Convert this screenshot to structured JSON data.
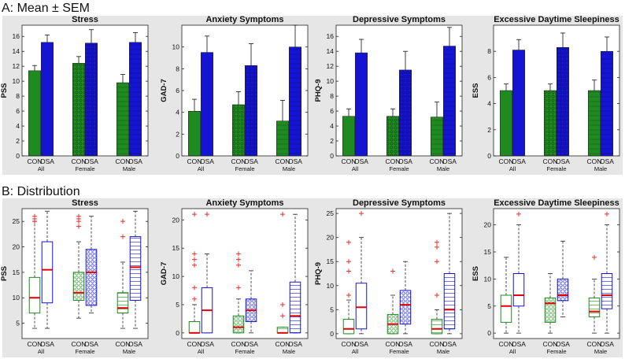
{
  "sections": [
    {
      "heading": "A: Mean ± SEM"
    },
    {
      "heading": "B: Distribution"
    }
  ],
  "colors": {
    "con": "#1f8a1f",
    "osa": "#1414d2",
    "median": "#e00000",
    "outlier": "#e83030",
    "panel_bg": "#e6e6e6"
  },
  "groups": [
    {
      "name": "All",
      "labels": [
        "CON",
        "OSA"
      ]
    },
    {
      "name": "Female",
      "labels": [
        "CON",
        "OSA"
      ]
    },
    {
      "name": "Male",
      "labels": [
        "CON",
        "OSA"
      ]
    }
  ],
  "chart_data": [
    {
      "type": "bar",
      "title": "Stress",
      "ylabel": "PSS",
      "ylim": [
        0,
        17.5
      ],
      "yticks": [
        0,
        2,
        4,
        6,
        8,
        10,
        12,
        14,
        16
      ],
      "categories": [
        "CON All",
        "OSA All",
        "CON Female",
        "OSA Female",
        "CON Male",
        "OSA Male"
      ],
      "series": [
        {
          "name": "Mean",
          "values": [
            11.4,
            15.2,
            12.4,
            15.1,
            9.8,
            15.2
          ]
        },
        {
          "name": "SEM",
          "values": [
            0.7,
            1.0,
            0.9,
            1.8,
            1.1,
            1.3
          ]
        }
      ]
    },
    {
      "type": "bar",
      "title": "Anxiety Symptoms",
      "ylabel": "GAD-7",
      "ylim": [
        0,
        12
      ],
      "yticks": [
        0,
        2,
        4,
        6,
        8,
        10
      ],
      "categories": [
        "CON All",
        "OSA All",
        "CON Female",
        "OSA Female",
        "CON Male",
        "OSA Male"
      ],
      "series": [
        {
          "name": "Mean",
          "values": [
            4.1,
            9.5,
            4.7,
            8.3,
            3.2,
            10.0
          ]
        },
        {
          "name": "SEM",
          "values": [
            1.1,
            1.5,
            1.2,
            2.0,
            1.9,
            2.0
          ]
        }
      ]
    },
    {
      "type": "bar",
      "title": "Depressive Symptoms",
      "ylabel": "PHQ-9",
      "ylim": [
        0,
        17.5
      ],
      "yticks": [
        0,
        2,
        4,
        6,
        8,
        10,
        12,
        14,
        16
      ],
      "categories": [
        "CON All",
        "OSA All",
        "CON Female",
        "OSA Female",
        "CON Male",
        "OSA Male"
      ],
      "series": [
        {
          "name": "Mean",
          "values": [
            5.3,
            13.8,
            5.3,
            11.5,
            5.2,
            14.7
          ]
        },
        {
          "name": "SEM",
          "values": [
            1.0,
            1.8,
            1.0,
            2.5,
            2.0,
            2.5
          ]
        }
      ]
    },
    {
      "type": "bar",
      "title": "Excessive Daytime Sleepiness",
      "ylabel": "ESS",
      "ylim": [
        0,
        10
      ],
      "yticks": [
        0,
        2,
        4,
        6,
        8
      ],
      "categories": [
        "CON All",
        "OSA All",
        "CON Female",
        "OSA Female",
        "CON Male",
        "OSA Male"
      ],
      "series": [
        {
          "name": "Mean",
          "values": [
            5.0,
            8.1,
            5.0,
            8.3,
            5.0,
            8.0
          ]
        },
        {
          "name": "SEM",
          "values": [
            0.5,
            0.8,
            0.5,
            1.1,
            0.8,
            1.1
          ]
        }
      ]
    },
    {
      "type": "box",
      "title": "Stress",
      "ylabel": "PSS",
      "ylim": [
        2,
        27.5
      ],
      "yticks": [
        5,
        10,
        15,
        20,
        25
      ],
      "categories": [
        "CON All",
        "OSA All",
        "CON Female",
        "OSA Female",
        "CON Male",
        "OSA Male"
      ],
      "boxes": [
        {
          "min": 4,
          "q1": 7,
          "median": 10,
          "q3": 14,
          "max": 25,
          "outliers": [
            26,
            25.5,
            25
          ]
        },
        {
          "min": 4,
          "q1": 9,
          "median": 15.5,
          "q3": 21,
          "max": 27,
          "outliers": []
        },
        {
          "min": 6,
          "q1": 9.5,
          "median": 11,
          "q3": 15,
          "max": 21,
          "outliers": [
            26,
            25.5,
            25,
            24
          ]
        },
        {
          "min": 7,
          "q1": 8.5,
          "median": 15,
          "q3": 19.5,
          "max": 26,
          "outliers": []
        },
        {
          "min": 4,
          "q1": 7,
          "median": 8,
          "q3": 11,
          "max": 17,
          "outliers": [
            25,
            22
          ]
        },
        {
          "min": 4,
          "q1": 9.5,
          "median": 16,
          "q3": 22,
          "max": 27,
          "outliers": []
        }
      ]
    },
    {
      "type": "box",
      "title": "Anxiety Symptoms",
      "ylabel": "GAD-7",
      "ylim": [
        -1,
        22
      ],
      "yticks": [
        0,
        5,
        10,
        15,
        20
      ],
      "categories": [
        "CON All",
        "OSA All",
        "CON Female",
        "OSA Female",
        "CON Male",
        "OSA Male"
      ],
      "boxes": [
        {
          "min": 0,
          "q1": 0,
          "median": 0,
          "q3": 2,
          "max": 5,
          "outliers": [
            21,
            14,
            13,
            12,
            8,
            6
          ]
        },
        {
          "min": 0,
          "q1": 0,
          "median": 4,
          "q3": 8,
          "max": 14,
          "outliers": [
            21
          ]
        },
        {
          "min": 0,
          "q1": 0,
          "median": 1,
          "q3": 3,
          "max": 6,
          "outliers": [
            14,
            13,
            12,
            8
          ]
        },
        {
          "min": 0,
          "q1": 2,
          "median": 4,
          "q3": 6,
          "max": 11,
          "outliers": []
        },
        {
          "min": 0,
          "q1": 0,
          "median": 0,
          "q3": 1,
          "max": 1,
          "outliers": [
            21,
            5,
            3
          ]
        },
        {
          "min": 0,
          "q1": 0,
          "median": 3,
          "q3": 9,
          "max": 21,
          "outliers": []
        }
      ]
    },
    {
      "type": "box",
      "title": "Depressive Symptoms",
      "ylabel": "PHQ-9",
      "ylim": [
        -1,
        26
      ],
      "yticks": [
        0,
        5,
        10,
        15,
        20,
        25
      ],
      "categories": [
        "CON All",
        "OSA All",
        "CON Female",
        "OSA Female",
        "CON Male",
        "OSA Male"
      ],
      "boxes": [
        {
          "min": 0,
          "q1": 0,
          "median": 1,
          "q3": 3,
          "max": 7,
          "outliers": [
            19,
            15,
            13,
            8
          ]
        },
        {
          "min": 0,
          "q1": 1,
          "median": 5.5,
          "q3": 10.5,
          "max": 20,
          "outliers": [
            25
          ]
        },
        {
          "min": 0,
          "q1": 0,
          "median": 2,
          "q3": 4,
          "max": 8,
          "outliers": [
            13
          ]
        },
        {
          "min": 0,
          "q1": 2,
          "median": 6,
          "q3": 9,
          "max": 15,
          "outliers": []
        },
        {
          "min": 0,
          "q1": 0,
          "median": 1,
          "q3": 3,
          "max": 5,
          "outliers": [
            19,
            18,
            15,
            8
          ]
        },
        {
          "min": 0,
          "q1": 1,
          "median": 5,
          "q3": 12.5,
          "max": 25,
          "outliers": []
        }
      ]
    },
    {
      "type": "box",
      "title": "Excessive Daytime Sleepiness",
      "ylabel": "ESS",
      "ylim": [
        -1,
        23
      ],
      "yticks": [
        0,
        5,
        10,
        15,
        20
      ],
      "categories": [
        "CON All",
        "OSA All",
        "CON Female",
        "OSA Female",
        "CON Male",
        "OSA Male"
      ],
      "boxes": [
        {
          "min": 0,
          "q1": 2,
          "median": 5,
          "q3": 7,
          "max": 14,
          "outliers": []
        },
        {
          "min": 0,
          "q1": 5,
          "median": 7,
          "q3": 11,
          "max": 20,
          "outliers": [
            22
          ]
        },
        {
          "min": 0,
          "q1": 2,
          "median": 5.5,
          "q3": 6.5,
          "max": 11,
          "outliers": []
        },
        {
          "min": 3,
          "q1": 6,
          "median": 7,
          "q3": 10,
          "max": 17,
          "outliers": []
        },
        {
          "min": 0,
          "q1": 3,
          "median": 4,
          "q3": 6.5,
          "max": 10,
          "outliers": [
            14
          ]
        },
        {
          "min": 0,
          "q1": 4.5,
          "median": 7,
          "q3": 11,
          "max": 20,
          "outliers": [
            22
          ]
        }
      ]
    }
  ]
}
